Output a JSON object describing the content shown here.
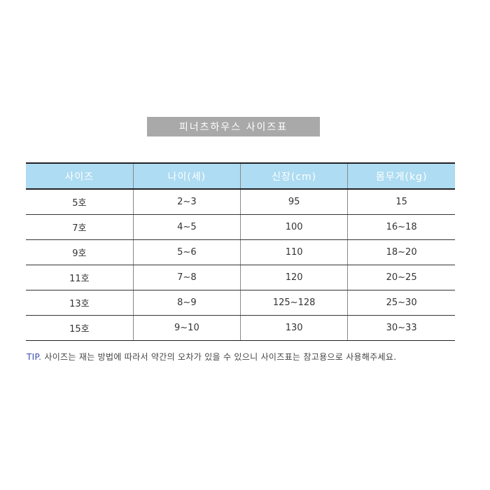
{
  "title": "피너츠하우스 사이즈표",
  "table": {
    "headers": [
      "사이즈",
      "나이(세)",
      "신장(cm)",
      "몸무게(kg)"
    ],
    "rows": [
      [
        "5호",
        "2~3",
        "95",
        "15"
      ],
      [
        "7호",
        "4~5",
        "100",
        "16~18"
      ],
      [
        "9호",
        "5~6",
        "110",
        "18~20"
      ],
      [
        "11호",
        "7~8",
        "120",
        "20~25"
      ],
      [
        "13호",
        "8~9",
        "125~128",
        "25~30"
      ],
      [
        "15호",
        "9~10",
        "130",
        "30~33"
      ]
    ]
  },
  "tip": {
    "label": "TIP.",
    "text": " 사이즈는 재는 방법에 따라서 약간의 오차가 있을 수 있으니 사이즈표는 참고용으로 사용해주세요."
  },
  "colors": {
    "header_bg": "#aedcf2",
    "title_bg": "#a9a9aa",
    "tip_label": "#3a4fb0"
  }
}
